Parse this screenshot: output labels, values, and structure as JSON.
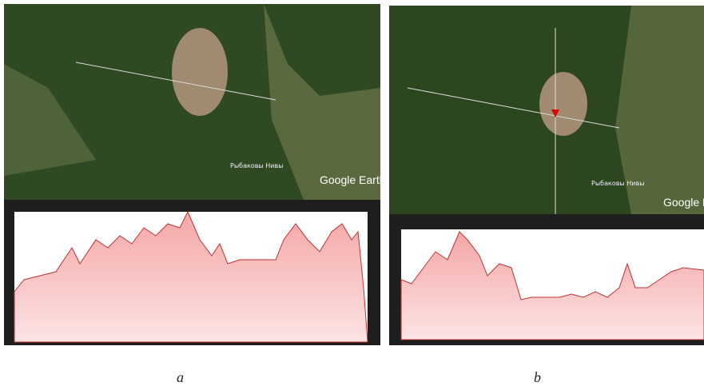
{
  "panels": [
    {
      "label": "a",
      "place_name": "Рыбаковы Нивы",
      "logo": "Google Earth"
    },
    {
      "label": "b",
      "place_name": "Рыбаковы Нивы",
      "logo": "Google Earth"
    }
  ]
}
